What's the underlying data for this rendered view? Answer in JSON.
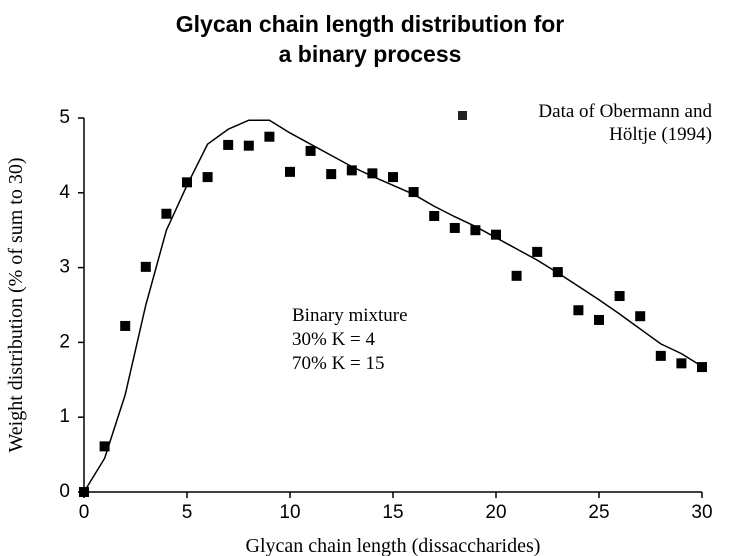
{
  "chart_data": {
    "type": "scatter",
    "title": [
      "Glycan chain length distribution for",
      "a binary process"
    ],
    "xlabel": "Glycan chain length (dissaccharides)",
    "ylabel": "Weight distribution (% of sum to 30)",
    "annotation": [
      "Binary mixture",
      "30% K = 4",
      "70% K = 15"
    ],
    "xlim": [
      0,
      30
    ],
    "ylim": [
      0,
      5
    ],
    "xticks": [
      0,
      5,
      10,
      15,
      20,
      25,
      30
    ],
    "yticks": [
      0,
      1,
      2,
      3,
      4,
      5
    ],
    "grid": false,
    "legend": "upper right",
    "series": [
      {
        "name": "Data of Obermann and Höltje (1994)",
        "style": "markers",
        "color": "#000000",
        "x": [
          0,
          1,
          2,
          3,
          4,
          5,
          6,
          7,
          8,
          9,
          10,
          11,
          12,
          13,
          14,
          15,
          16,
          17,
          18,
          19,
          20,
          21,
          22,
          23,
          24,
          25,
          26,
          27,
          28,
          29,
          30
        ],
        "values": [
          0,
          0.61,
          2.22,
          3.01,
          3.72,
          4.14,
          4.21,
          4.64,
          4.63,
          4.75,
          4.28,
          4.56,
          4.25,
          4.3,
          4.26,
          4.21,
          4.01,
          3.69,
          3.53,
          3.5,
          3.44,
          2.89,
          3.21,
          2.94,
          2.43,
          2.3,
          2.62,
          2.35,
          1.82,
          1.72,
          1.67
        ]
      },
      {
        "style": "line",
        "color": "#000000",
        "x": [
          0,
          1,
          2,
          3,
          4,
          5,
          6,
          7,
          8,
          9,
          10,
          11,
          12,
          13,
          14,
          15,
          16,
          17,
          18,
          19,
          20,
          21,
          22,
          23,
          24,
          25,
          26,
          27,
          28,
          29,
          30
        ],
        "values": [
          0,
          0.45,
          1.3,
          2.5,
          3.5,
          4.1,
          4.65,
          4.85,
          4.97,
          4.97,
          4.8,
          4.65,
          4.5,
          4.35,
          4.22,
          4.1,
          3.98,
          3.82,
          3.68,
          3.55,
          3.4,
          3.25,
          3.1,
          2.93,
          2.75,
          2.57,
          2.38,
          2.18,
          1.98,
          1.85,
          1.68
        ]
      }
    ]
  }
}
